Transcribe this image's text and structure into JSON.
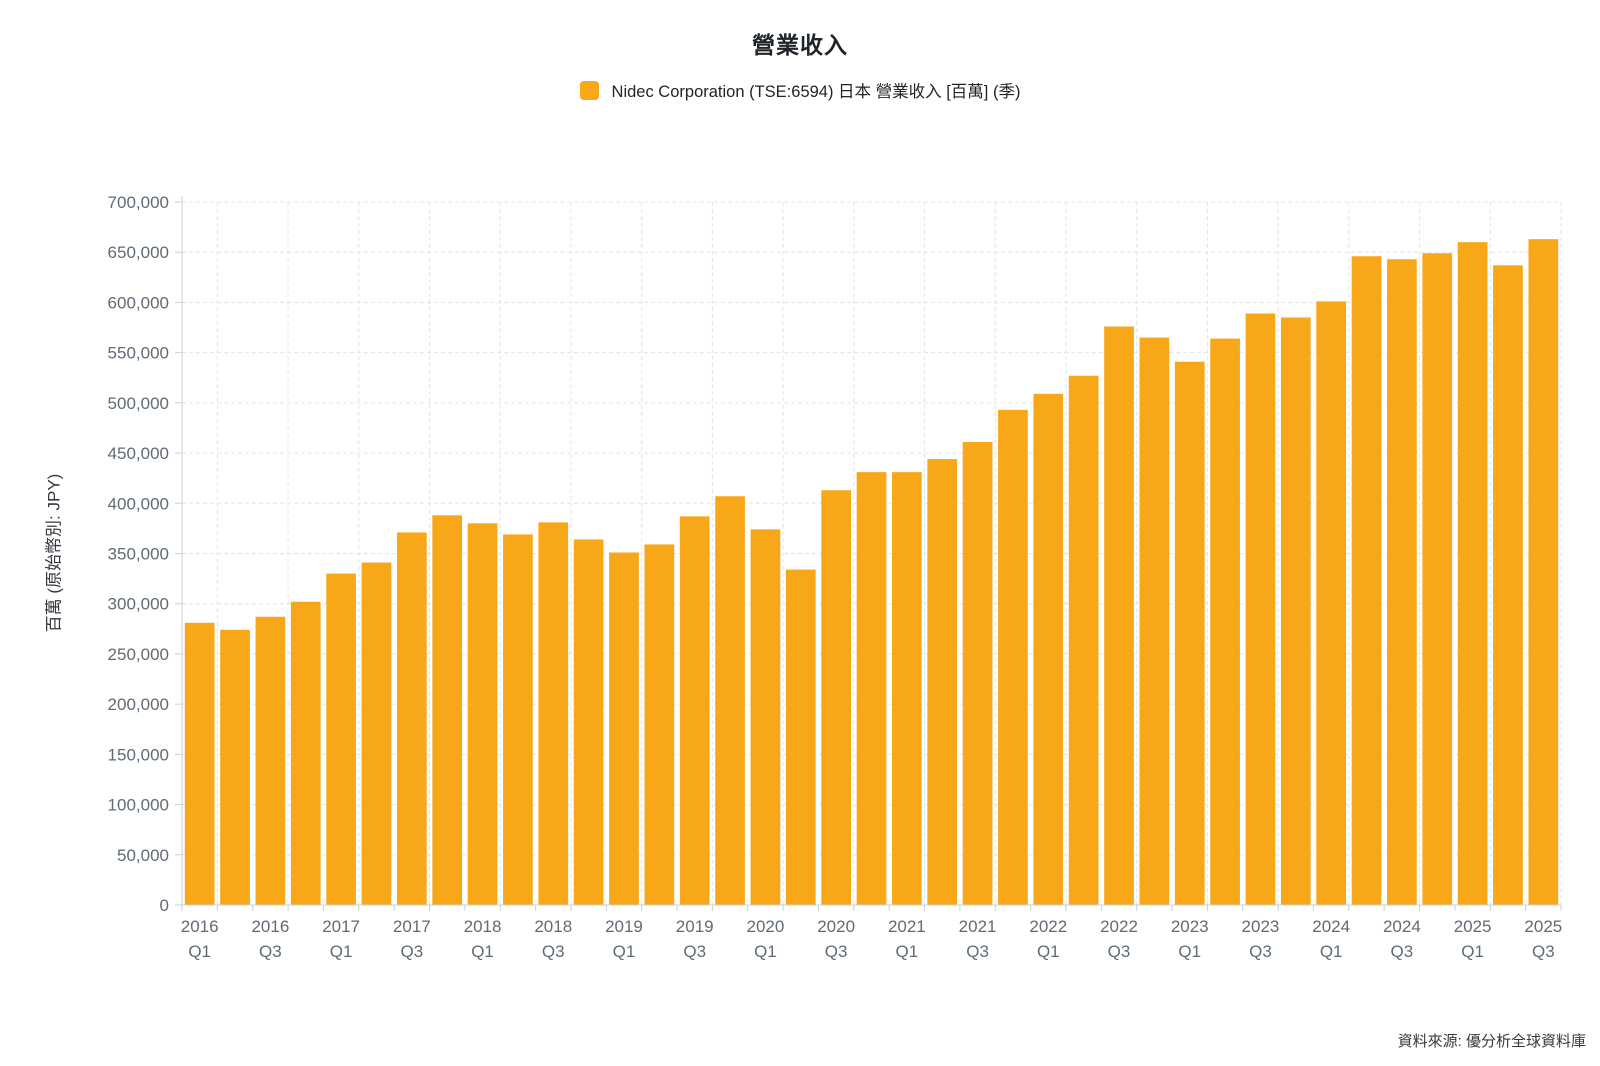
{
  "title": "營業收入",
  "legend": {
    "series_label": "Nidec Corporation (TSE:6594) 日本 營業收入 [百萬] (季)"
  },
  "source_note": "資料來源: 優分析全球資料庫",
  "colors": {
    "bar": "#F7A717",
    "grid": "#e1e5e9",
    "axis": "#c9d0d6",
    "tick_text": "#5f6b76",
    "title_text": "#1f242a"
  },
  "chart_data": {
    "type": "bar",
    "title": "營業收入",
    "series_name": "Nidec Corporation (TSE:6594) 日本 營業收入 [百萬] (季)",
    "xlabel": "",
    "ylabel": "百萬 (原始幣別: JPY)",
    "unit": "百萬 JPY",
    "period": "季",
    "grid": true,
    "legend_position": "top",
    "ylim": [
      0,
      700000
    ],
    "ytick_step": 50000,
    "x_label_every": 2,
    "categories": [
      "2016 Q1",
      "2016 Q2",
      "2016 Q3",
      "2016 Q4",
      "2017 Q1",
      "2017 Q2",
      "2017 Q3",
      "2017 Q4",
      "2018 Q1",
      "2018 Q2",
      "2018 Q3",
      "2018 Q4",
      "2019 Q1",
      "2019 Q2",
      "2019 Q3",
      "2019 Q4",
      "2020 Q1",
      "2020 Q2",
      "2020 Q3",
      "2020 Q4",
      "2021 Q1",
      "2021 Q2",
      "2021 Q3",
      "2021 Q4",
      "2022 Q1",
      "2022 Q2",
      "2022 Q3",
      "2022 Q4",
      "2023 Q1",
      "2023 Q2",
      "2023 Q3",
      "2023 Q4",
      "2024 Q1",
      "2024 Q2",
      "2024 Q3",
      "2024 Q4",
      "2025 Q1",
      "2025 Q2",
      "2025 Q3"
    ],
    "values": [
      281000,
      274000,
      287000,
      302000,
      330000,
      341000,
      371000,
      388000,
      380000,
      369000,
      381000,
      364000,
      351000,
      359000,
      387000,
      407000,
      374000,
      334000,
      413000,
      431000,
      431000,
      444000,
      461000,
      493000,
      509000,
      527000,
      576000,
      565000,
      541000,
      564000,
      589000,
      585000,
      601000,
      646000,
      643000,
      649000,
      660000,
      637000,
      663000
    ],
    "source": "資料來源: 優分析全球資料庫"
  }
}
